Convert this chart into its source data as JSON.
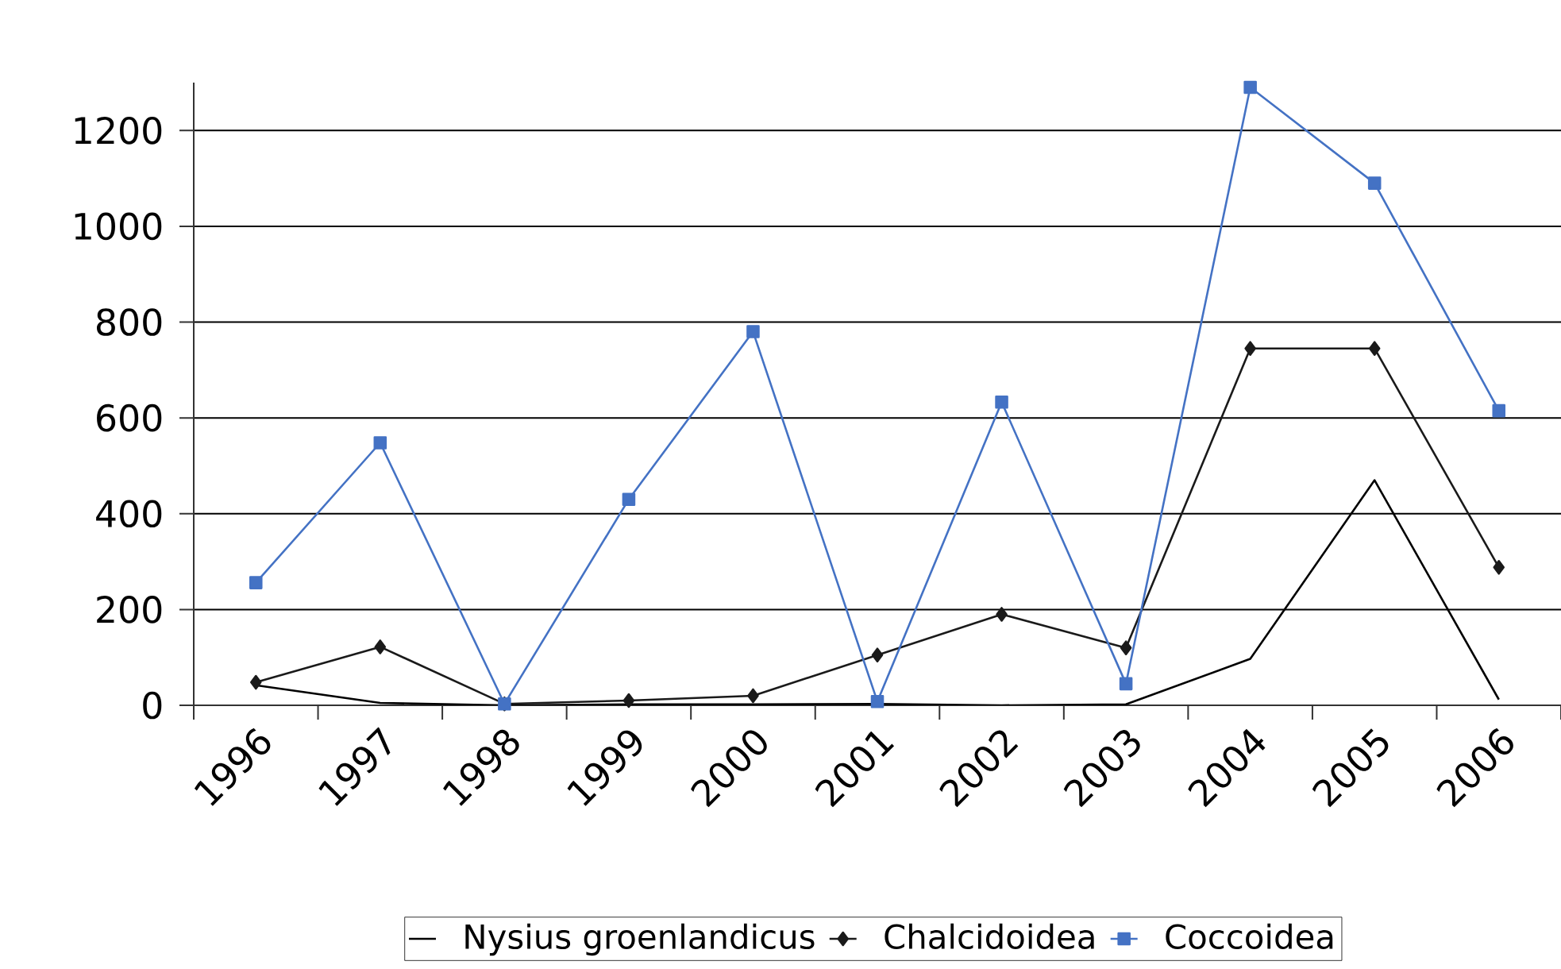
{
  "chart_data": {
    "type": "line",
    "categories": [
      "1996",
      "1997",
      "1998",
      "1999",
      "2000",
      "2001",
      "2002",
      "2003",
      "2004",
      "2005",
      "2006"
    ],
    "series": [
      {
        "name": "Nysius groenlandicus",
        "color": "#000000",
        "marker": "none",
        "values": [
          42,
          5,
          0,
          2,
          2,
          3,
          0,
          2,
          97,
          470,
          12
        ]
      },
      {
        "name": "Chalcidoidea",
        "color": "#1a1a1a",
        "marker": "diamond",
        "values": [
          48,
          122,
          3,
          10,
          20,
          105,
          190,
          120,
          745,
          745,
          288
        ]
      },
      {
        "name": "Coccoidea",
        "color": "#4472c4",
        "marker": "square",
        "values": [
          256,
          548,
          3,
          430,
          780,
          8,
          633,
          45,
          1290,
          1090,
          615
        ]
      }
    ],
    "ylim": [
      0,
      1300
    ],
    "yticks": [
      0,
      200,
      400,
      600,
      800,
      1000,
      1200
    ],
    "grid": "y",
    "legend": "bottom"
  }
}
